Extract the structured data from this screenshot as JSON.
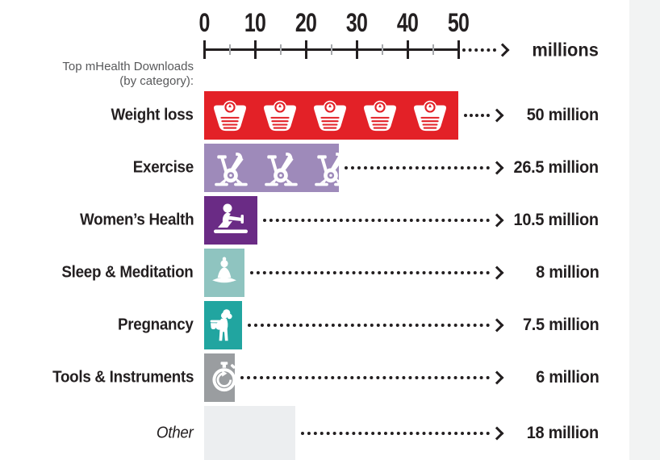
{
  "title": {
    "line1": "Top mHealth Downloads",
    "line2": "(by category):"
  },
  "axis": {
    "tick_labels": [
      "0",
      "10",
      "20",
      "30",
      "40",
      "50"
    ],
    "minor_tick_values": [
      5,
      15,
      25,
      35,
      45
    ],
    "unit_label": "millions"
  },
  "chart_data": {
    "type": "bar",
    "orientation": "horizontal",
    "title": "Top mHealth Downloads (by category)",
    "xlabel": "millions",
    "xlim": [
      0,
      50
    ],
    "x_ticks": [
      0,
      10,
      20,
      30,
      40,
      50
    ],
    "grid": false,
    "legend": "none",
    "categories": [
      "Weight loss",
      "Exercise",
      "Women’s Health",
      "Sleep & Meditation",
      "Pregnancy",
      "Tools & Instruments",
      "Other"
    ],
    "values": [
      50,
      26.5,
      10.5,
      8,
      7.5,
      6,
      18
    ],
    "value_labels": [
      "50 million",
      "26.5 million",
      "10.5 million",
      "8 million",
      "7.5 million",
      "6 million",
      "18 million"
    ],
    "bar_colors": [
      "#e32127",
      "#9e8aba",
      "#6a2b85",
      "#8fc4c0",
      "#21a5a0",
      "#9a9da0",
      "#eceef0"
    ],
    "icons": [
      "weight-scale-icon",
      "exercise-bike-icon",
      "rowing-person-icon",
      "meditation-icon",
      "pregnant-woman-icon",
      "stopwatch-icon",
      ""
    ],
    "icon_counts": [
      5,
      3,
      1,
      1,
      1,
      1,
      0
    ],
    "annotations": "dotted arrows lead from each bar end to its value label"
  },
  "colors": {
    "text": "#231f20",
    "title_gray": "#58595b",
    "minor_tick": "#a7a9ac",
    "side_strip": "#f2f3f3"
  }
}
